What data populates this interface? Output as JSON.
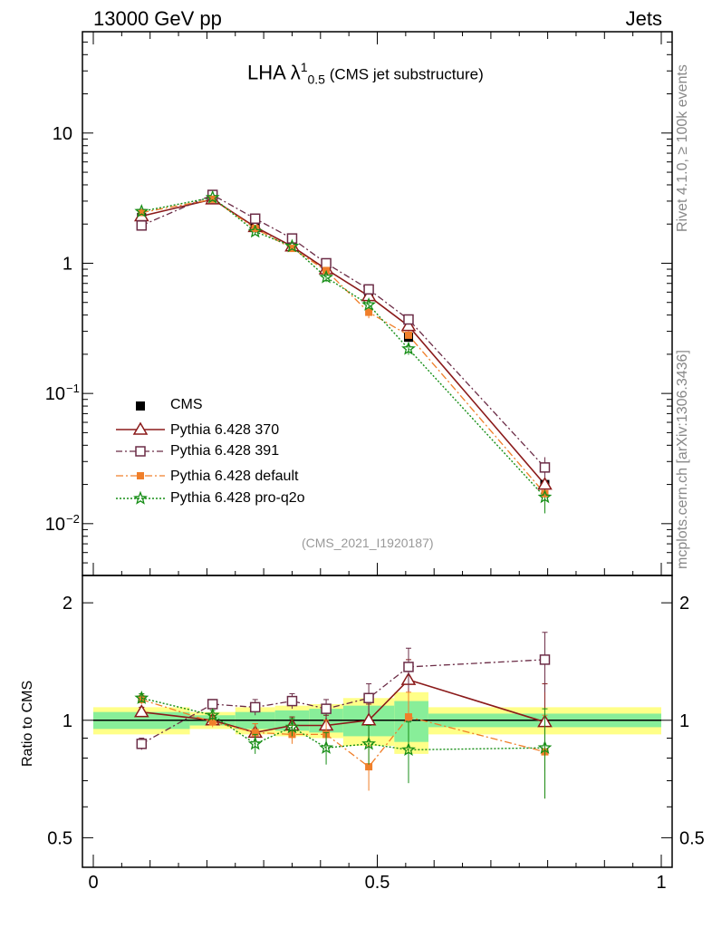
{
  "header": {
    "left": "13000 GeV pp",
    "right": "Jets"
  },
  "side_text": {
    "rivet": "Rivet 4.1.0, ≥ 100k events",
    "mcplots": "mcplots.cern.ch [arXiv:1306.3436]"
  },
  "title": {
    "main": "LHA λ",
    "sup": "1",
    "sub": "0.5",
    "paren": " (CMS jet substructure)"
  },
  "analysis_id": "(CMS_2021_I1920187)",
  "ratio_ylabel": "Ratio to CMS",
  "legend": [
    {
      "label": "CMS",
      "color": "#000000",
      "marker": "square-filled"
    },
    {
      "label": "Pythia 6.428 370",
      "color": "#8b1a1a",
      "marker": "triangle-open"
    },
    {
      "label": "Pythia 6.428 391",
      "color": "#6b2c46",
      "marker": "square-open"
    },
    {
      "label": "Pythia 6.428 default",
      "color": "#f07f2a",
      "marker": "square-filled-small"
    },
    {
      "label": "Pythia 6.428 pro-q2o",
      "color": "#168e16",
      "marker": "star"
    }
  ],
  "chart_data": [
    {
      "type": "line",
      "name": "main",
      "yscale": "log",
      "xlim": [
        0,
        1
      ],
      "ylim": [
        0.004,
        60
      ],
      "y_ticks": [
        {
          "value": 10,
          "label": "10"
        },
        {
          "value": 1,
          "label": "1"
        },
        {
          "value": 0.1,
          "label": "10",
          "exp": "−1"
        },
        {
          "value": 0.01,
          "label": "10",
          "exp": "−2"
        }
      ],
      "x": [
        0.085,
        0.21,
        0.285,
        0.35,
        0.41,
        0.485,
        0.555,
        0.795
      ],
      "data": {
        "name": "CMS",
        "values": [
          2.25,
          3.15,
          2.05,
          1.4,
          0.95,
          0.56,
          0.27,
          0.02
        ]
      },
      "series": [
        {
          "name": "Pythia 6.428 370",
          "values": [
            2.3,
            3.1,
            1.9,
            1.35,
            0.9,
            0.56,
            0.33,
            0.02
          ],
          "errors": [
            0.05,
            0.05,
            0.05,
            0.05,
            0.05,
            0.05,
            0.06,
            0.1
          ]
        },
        {
          "name": "Pythia 6.428 391",
          "values": [
            1.95,
            3.35,
            2.2,
            1.55,
            1.0,
            0.63,
            0.37,
            0.027
          ],
          "errors": [
            0.05,
            0.05,
            0.05,
            0.05,
            0.05,
            0.06,
            0.08,
            0.2
          ]
        },
        {
          "name": "Pythia 6.428 default",
          "values": [
            2.45,
            3.1,
            1.85,
            1.3,
            0.88,
            0.42,
            0.28,
            0.017
          ],
          "errors": [
            0.05,
            0.05,
            0.05,
            0.05,
            0.08,
            0.1,
            0.1,
            0.25
          ]
        },
        {
          "name": "Pythia 6.428 pro-q2o",
          "values": [
            2.5,
            3.2,
            1.75,
            1.35,
            0.78,
            0.48,
            0.22,
            0.016
          ],
          "errors": [
            0.05,
            0.05,
            0.05,
            0.05,
            0.08,
            0.1,
            0.1,
            0.25
          ]
        }
      ]
    },
    {
      "type": "line",
      "name": "ratio",
      "ylabel": "Ratio to CMS",
      "yscale": "log",
      "xlim": [
        0,
        1
      ],
      "ylim": [
        0.42,
        2.35
      ],
      "y_ticks": [
        {
          "value": 2,
          "label": "2"
        },
        {
          "value": 1,
          "label": "1"
        },
        {
          "value": 0.5,
          "label": "0.5"
        }
      ],
      "x_ticks": [
        {
          "value": 0,
          "label": "0"
        },
        {
          "value": 0.5,
          "label": "0.5"
        },
        {
          "value": 1,
          "label": "1"
        }
      ],
      "x": [
        0.085,
        0.21,
        0.285,
        0.35,
        0.41,
        0.485,
        0.555,
        0.795
      ],
      "bin_edges": [
        0,
        0.17,
        0.25,
        0.32,
        0.38,
        0.44,
        0.53,
        0.59,
        1.0
      ],
      "band_inner": [
        0.05,
        0.03,
        0.05,
        0.06,
        0.07,
        0.09,
        0.12,
        0.04
      ],
      "band_outer": [
        0.08,
        0.05,
        0.08,
        0.09,
        0.1,
        0.14,
        0.18,
        0.08
      ],
      "series": [
        {
          "name": "Pythia 6.428 370",
          "values": [
            1.05,
            1.0,
            0.93,
            0.97,
            0.97,
            1.0,
            1.27,
            0.99
          ],
          "errors": [
            0.03,
            0.03,
            0.05,
            0.05,
            0.06,
            0.1,
            0.16,
            0.25
          ]
        },
        {
          "name": "Pythia 6.428 391",
          "values": [
            0.87,
            1.1,
            1.08,
            1.12,
            1.07,
            1.14,
            1.37,
            1.43
          ],
          "errors": [
            0.03,
            0.03,
            0.05,
            0.05,
            0.06,
            0.1,
            0.16,
            0.25
          ]
        },
        {
          "name": "Pythia 6.428 default",
          "values": [
            1.13,
            0.99,
            0.93,
            0.92,
            0.92,
            0.76,
            1.02,
            0.83
          ],
          "errors": [
            0.03,
            0.03,
            0.05,
            0.05,
            0.08,
            0.1,
            0.16,
            0.2
          ]
        },
        {
          "name": "Pythia 6.428 pro-q2o",
          "values": [
            1.14,
            1.03,
            0.87,
            0.96,
            0.85,
            0.87,
            0.84,
            0.85
          ],
          "errors": [
            0.03,
            0.03,
            0.05,
            0.05,
            0.08,
            0.1,
            0.15,
            0.22
          ]
        }
      ]
    }
  ]
}
